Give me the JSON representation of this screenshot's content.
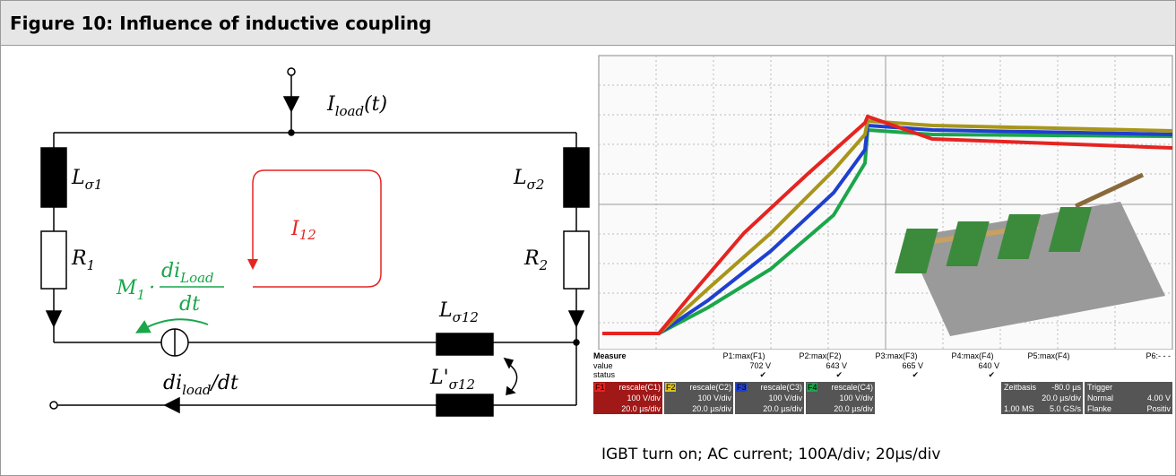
{
  "figure": {
    "title": "Figure 10: Influence of inductive coupling",
    "caption": "IGBT turn on; AC current; 100A/div; 20µs/div"
  },
  "circuit": {
    "i_load": {
      "main": "I",
      "sub": "load",
      "tail": "(t)"
    },
    "l_s1": {
      "main": "L",
      "sub": "σ1"
    },
    "l_s2": {
      "main": "L",
      "sub": "σ2"
    },
    "r1": {
      "main": "R",
      "sub": "1"
    },
    "r2": {
      "main": "R",
      "sub": "2"
    },
    "i12": {
      "main": "I",
      "sub": "12"
    },
    "m1": {
      "main": "M",
      "sub": "1",
      "dot": "·",
      "num_main": "di",
      "num_sub": "Load",
      "den": "dt"
    },
    "l_s12": {
      "main": "L",
      "sub": "σ12"
    },
    "l_s12_prime": {
      "main": "L'",
      "sub": "σ12"
    },
    "di_load": {
      "main": "di",
      "sub": "load",
      "tail": "/dt"
    }
  },
  "scope": {
    "measure": {
      "header": "Measure",
      "rows": [
        "value",
        "status"
      ],
      "params": [
        "P1:max(F1)",
        "P2:max(F2)",
        "P3:max(F3)",
        "P4:max(F4)",
        "P5:max(F4)",
        "P6:- - -"
      ],
      "values": [
        "702 V",
        "643 V",
        "665 V",
        "640 V"
      ],
      "status": [
        "✔",
        "✔",
        "✔",
        "✔"
      ]
    },
    "channels": [
      {
        "id": "F1",
        "fn": "rescale(C1)",
        "vdiv": "100 V/div",
        "tdiv": "20.0 µs/div"
      },
      {
        "id": "F2",
        "fn": "rescale(C2)",
        "vdiv": "100 V/div",
        "tdiv": "20.0 µs/div"
      },
      {
        "id": "F3",
        "fn": "rescale(C3)",
        "vdiv": "100 V/div",
        "tdiv": "20.0 µs/div"
      },
      {
        "id": "F4",
        "fn": "rescale(C4)",
        "vdiv": "100 V/div",
        "tdiv": "20.0 µs/div"
      }
    ],
    "timebase": {
      "label": "Zeitbasis",
      "offset": "-80.0 µs",
      "tdiv": "20.0 µs/div",
      "points": "1.00 MS",
      "rate": "5.0 GS/s"
    },
    "trigger": {
      "label": "Trigger",
      "mode": "Normal",
      "level": "4.00 V",
      "type": "Flanke",
      "slope": "Positiv"
    }
  }
}
